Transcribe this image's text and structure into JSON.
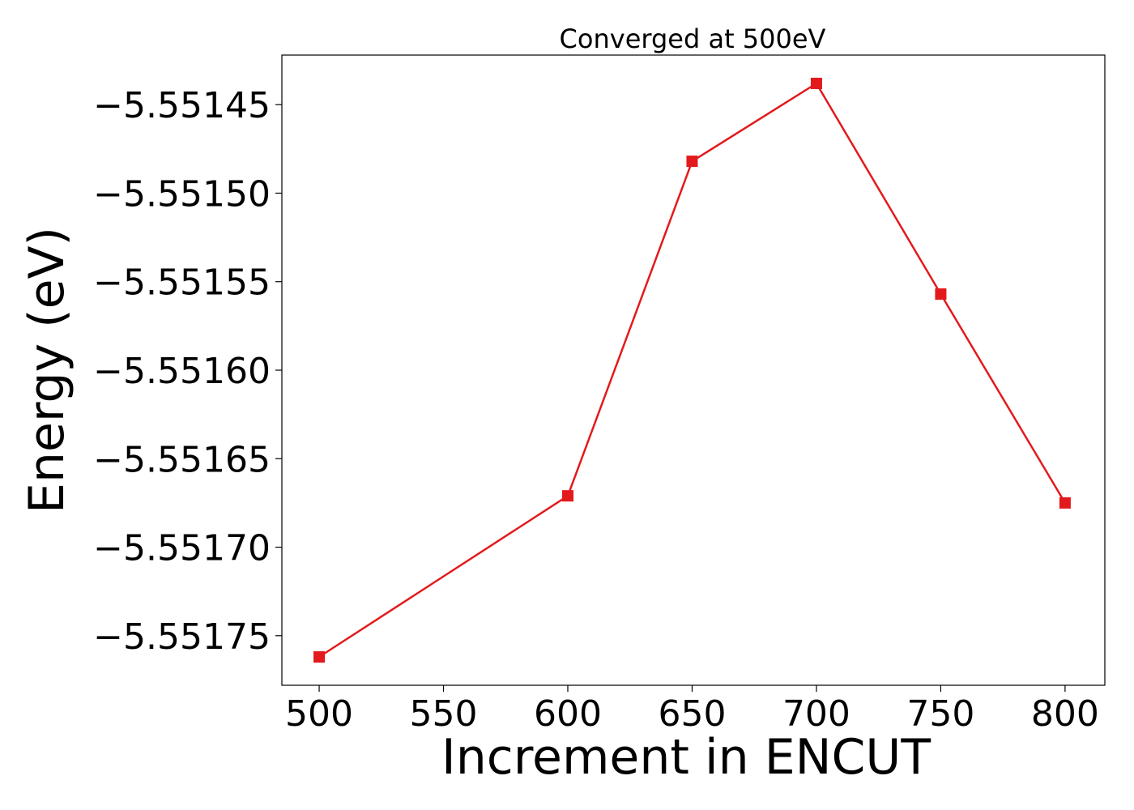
{
  "chart_data": {
    "type": "line",
    "title": "Converged at 500eV",
    "xlabel": "Increment in ENCUT",
    "ylabel": "Energy (eV)",
    "x": [
      500,
      600,
      650,
      700,
      750,
      800
    ],
    "series": [
      {
        "values": [
          -5.551762,
          -5.551671,
          -5.551482,
          -5.551438,
          -5.551557,
          -5.551675
        ]
      }
    ],
    "xticks": [
      500,
      550,
      600,
      650,
      700,
      750,
      800
    ],
    "xtick_labels": [
      "500",
      "550",
      "600",
      "650",
      "700",
      "750",
      "800"
    ],
    "yticks": [
      -5.55145,
      -5.5515,
      -5.55155,
      -5.5516,
      -5.55165,
      -5.5517,
      -5.55175
    ],
    "ytick_labels": [
      "−5.55145",
      "−5.55150",
      "−5.55155",
      "−5.55160",
      "−5.55165",
      "−5.55170",
      "−5.55175"
    ],
    "xlim": [
      485,
      816
    ],
    "ylim": [
      -5.551778,
      -5.551422
    ],
    "grid": false,
    "legend": false,
    "line_color": "#e31a1c",
    "marker": "square"
  }
}
